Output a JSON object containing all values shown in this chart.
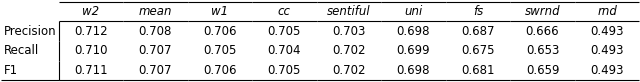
{
  "columns": [
    "",
    "w2",
    "mean",
    "w1",
    "cc",
    "sentiful",
    "uni",
    "fs",
    "swrnd",
    "rnd"
  ],
  "rows": [
    [
      "Precision",
      "0.712",
      "0.708",
      "0.706",
      "0.705",
      "0.703",
      "0.698",
      "0.687",
      "0.666",
      "0.493"
    ],
    [
      "Recall",
      "0.710",
      "0.707",
      "0.705",
      "0.704",
      "0.702",
      "0.699",
      "0.675",
      "0.653",
      "0.493"
    ],
    [
      "F1",
      "0.711",
      "0.707",
      "0.706",
      "0.705",
      "0.702",
      "0.698",
      "0.681",
      "0.659",
      "0.493"
    ]
  ],
  "background_color": "#ffffff",
  "figsize": [
    6.4,
    0.82
  ],
  "dpi": 100,
  "fontsize": 8.5,
  "font_family": "DejaVu Sans"
}
